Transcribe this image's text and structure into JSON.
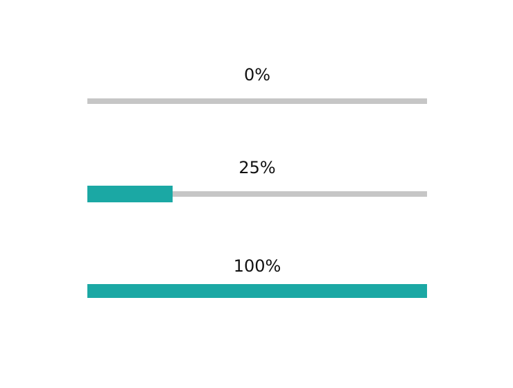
{
  "colors": {
    "track": "#c6c6c6",
    "fill": "#1ba8a4"
  },
  "progress_bars": [
    {
      "label": "0%",
      "value": 0
    },
    {
      "label": "25%",
      "value": 25
    },
    {
      "label": "100%",
      "value": 100
    }
  ]
}
